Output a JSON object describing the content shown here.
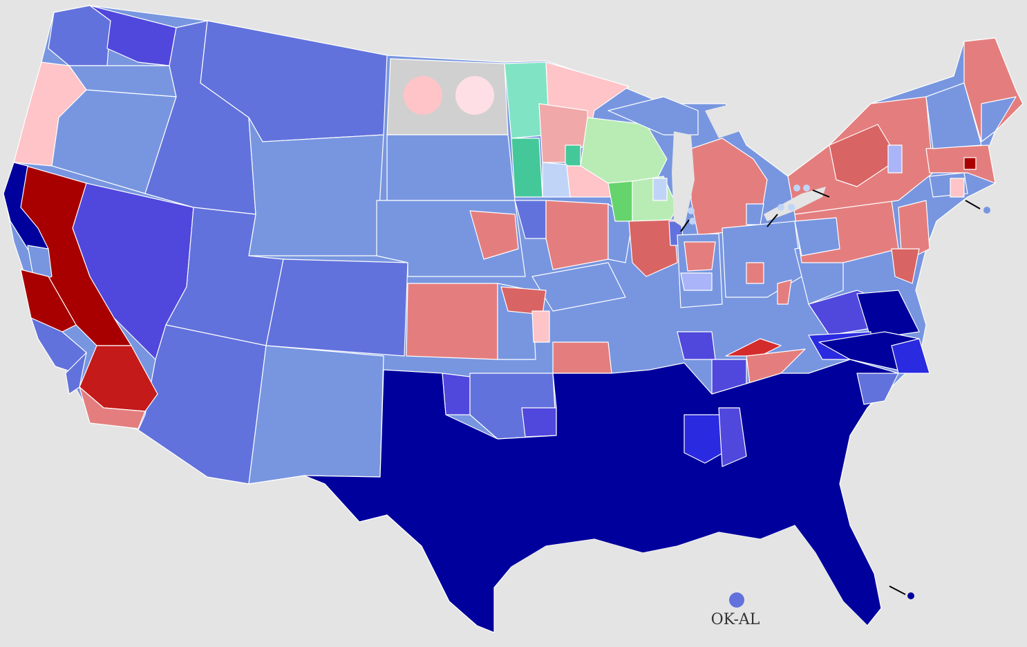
{
  "map": {
    "legend_marker_label": "OK-AL",
    "palette": {
      "background": "#e4e4e4",
      "dem_solid": "#00009c",
      "dem_strong": "#2a2ae0",
      "dem_medium": "#5048dc",
      "dem_light": "#6272dc",
      "dem_pale": "#7896e0",
      "dem_faint": "#c0d4f8",
      "rep_solid": "#a80000",
      "rep_strong": "#d42c2c",
      "rep_medium": "#e47e7e",
      "rep_light": "#f0a8a8",
      "rep_faint": "#ffc4c8",
      "third_dark": "#44c89a",
      "third_light": "#80e4c4",
      "other_green_dark": "#66d46c",
      "other_green_light": "#b8ecb4",
      "no_data": "#d0d0d0"
    }
  }
}
